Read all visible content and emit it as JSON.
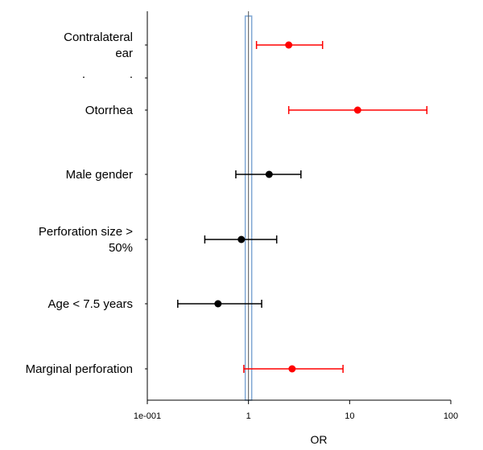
{
  "chart_data": {
    "type": "scatter",
    "subtype": "forest-plot",
    "title": "",
    "xlabel": "OR",
    "ylabel": "",
    "x_scale": "log",
    "xlim": [
      0.1,
      100
    ],
    "x_ticks": [
      {
        "value": 0.1,
        "label": "1e-001"
      },
      {
        "value": 1,
        "label": "1"
      },
      {
        "value": 10,
        "label": "10"
      },
      {
        "value": 100,
        "label": "100"
      }
    ],
    "reference_value": 1,
    "grid": false,
    "legend": "none",
    "colors": {
      "significant": "#ff0000",
      "not_significant": "#000000",
      "reference_band": "#7fa7d4"
    },
    "rows": [
      {
        "label_lines": [
          "Contralateral",
          "ear"
        ],
        "or": 2.5,
        "ci_low": 1.2,
        "ci_high": 5.4,
        "color": "#ff0000"
      },
      {
        "label_lines": [
          ". ."
        ],
        "or": null,
        "ci_low": null,
        "ci_high": null,
        "color": "#000000"
      },
      {
        "label_lines": [
          "Otorrhea"
        ],
        "or": 12,
        "ci_low": 2.5,
        "ci_high": 58,
        "color": "#ff0000"
      },
      {
        "label_lines": [
          "Male gender"
        ],
        "or": 1.6,
        "ci_low": 0.75,
        "ci_high": 3.3,
        "color": "#000000"
      },
      {
        "label_lines": [
          "Perforation size >",
          "50%"
        ],
        "or": 0.85,
        "ci_low": 0.37,
        "ci_high": 1.9,
        "color": "#000000"
      },
      {
        "label_lines": [
          "Age < 7.5 years"
        ],
        "or": 0.5,
        "ci_low": 0.2,
        "ci_high": 1.35,
        "color": "#000000"
      },
      {
        "label_lines": [
          "Marginal perforation"
        ],
        "or": 2.7,
        "ci_low": 0.9,
        "ci_high": 8.6,
        "color": "#ff0000"
      }
    ]
  }
}
